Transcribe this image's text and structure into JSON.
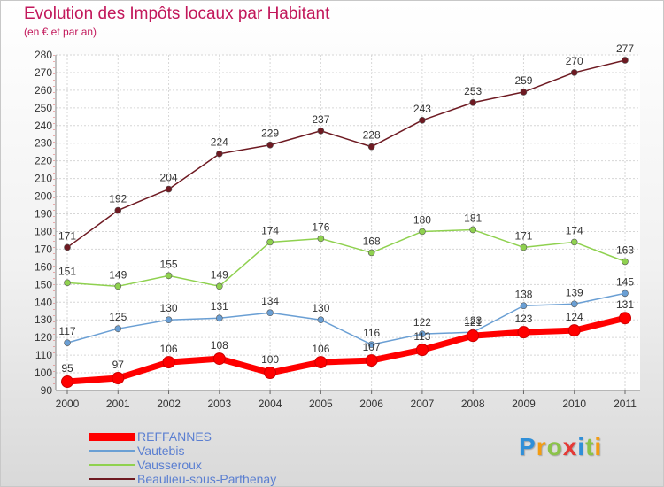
{
  "header": {
    "title": "Evolution des Impôts locaux par Habitant",
    "subtitle": "(en € et par an)"
  },
  "brand": {
    "text": "Proxiti",
    "letter_colors": [
      "#2f8fd8",
      "#f39c12",
      "#8bc34a",
      "#e53935",
      "#2f8fd8",
      "#8bc34a",
      "#f39c12"
    ]
  },
  "chart_data": {
    "type": "line",
    "title": "Evolution des Impôts locaux par Habitant",
    "subtitle": "(en € et par an)",
    "xlabel": "",
    "ylabel": "",
    "categories": [
      "2000",
      "2001",
      "2002",
      "2003",
      "2004",
      "2005",
      "2006",
      "2007",
      "2008",
      "2009",
      "2010",
      "2011"
    ],
    "ylim": [
      90,
      280
    ],
    "yticks": [
      90,
      100,
      110,
      120,
      130,
      140,
      150,
      160,
      170,
      180,
      190,
      200,
      210,
      220,
      230,
      240,
      250,
      260,
      270,
      280
    ],
    "grid": true,
    "legend_position": "bottom-left",
    "series": [
      {
        "name": "Beaulieu-sous-Parthenay",
        "color": "#6e1a22",
        "values": [
          171,
          192,
          204,
          224,
          229,
          237,
          228,
          243,
          253,
          259,
          270,
          277
        ],
        "labels": [
          "171",
          "192",
          "204",
          "224",
          "229",
          "237",
          "228",
          "243",
          "253",
          "259",
          "270",
          "277"
        ]
      },
      {
        "name": "Vausseroux",
        "color": "#8fd14f",
        "values": [
          151,
          149,
          155,
          149,
          174,
          176,
          168,
          180,
          181,
          171,
          174,
          163
        ],
        "labels": [
          "151",
          "149",
          "155",
          "149",
          "174",
          "176",
          "168",
          "180",
          "181",
          "171",
          "174",
          "163"
        ]
      },
      {
        "name": "Vautebis",
        "color": "#6a9fd4",
        "values": [
          117,
          125,
          130,
          131,
          134,
          130,
          116,
          122,
          123,
          138,
          139,
          145
        ],
        "labels": [
          "117",
          "125",
          "130",
          "131",
          "134",
          "130",
          "116",
          "122",
          "123",
          "138",
          "139",
          "145"
        ]
      },
      {
        "name": "REFFANNES",
        "color": "#ff0000",
        "values": [
          95,
          97,
          106,
          108,
          100,
          106,
          107,
          113,
          121,
          123,
          124,
          131
        ],
        "labels": [
          "95",
          "97",
          "106",
          "108",
          "100",
          "106",
          "107",
          "113",
          "121",
          "123",
          "124",
          "131"
        ]
      }
    ],
    "legend_order": [
      "REFFANNES",
      "Vautebis",
      "Vausseroux",
      "Beaulieu-sous-Parthenay"
    ]
  }
}
